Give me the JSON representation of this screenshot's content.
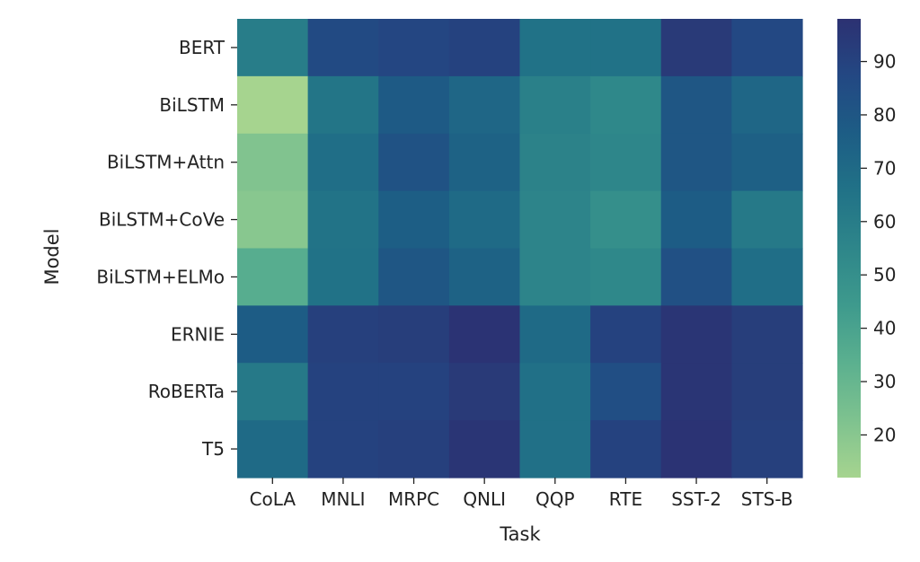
{
  "chart_data": {
    "type": "heatmap",
    "title": "",
    "xlabel": "Task",
    "ylabel": "Model",
    "x_categories": [
      "CoLA",
      "MNLI",
      "MRPC",
      "QNLI",
      "QQP",
      "RTE",
      "SST-2",
      "STS-B"
    ],
    "y_categories": [
      "BERT",
      "BiLSTM",
      "BiLSTM+Attn",
      "BiLSTM+CoVe",
      "BiLSTM+ELMo",
      "ERNIE",
      "RoBERTa",
      "T5"
    ],
    "values": [
      [
        60,
        86,
        88,
        90,
        66,
        66,
        94,
        87
      ],
      [
        12,
        64,
        78,
        72,
        58,
        54,
        80,
        72
      ],
      [
        22,
        68,
        82,
        74,
        57,
        55,
        80,
        75
      ],
      [
        20,
        65,
        76,
        70,
        56,
        50,
        77,
        62
      ],
      [
        35,
        66,
        80,
        74,
        56,
        54,
        83,
        68
      ],
      [
        77,
        91,
        92,
        97,
        70,
        90,
        96,
        92
      ],
      [
        62,
        90,
        90,
        94,
        67,
        84,
        96,
        92
      ],
      [
        70,
        90,
        91,
        96,
        67,
        90,
        97,
        91
      ]
    ],
    "colorbar": {
      "min": 12,
      "max": 98,
      "ticks": [
        20,
        30,
        40,
        50,
        60,
        70,
        80,
        90
      ],
      "colormap": "crest",
      "colors": [
        "#a6d48f",
        "#7ec28f",
        "#5bb08f",
        "#3e9a8d",
        "#2e868a",
        "#217287",
        "#1d5d85",
        "#234883",
        "#2c3172"
      ]
    },
    "grid": false,
    "legend": "colorbar-right"
  }
}
